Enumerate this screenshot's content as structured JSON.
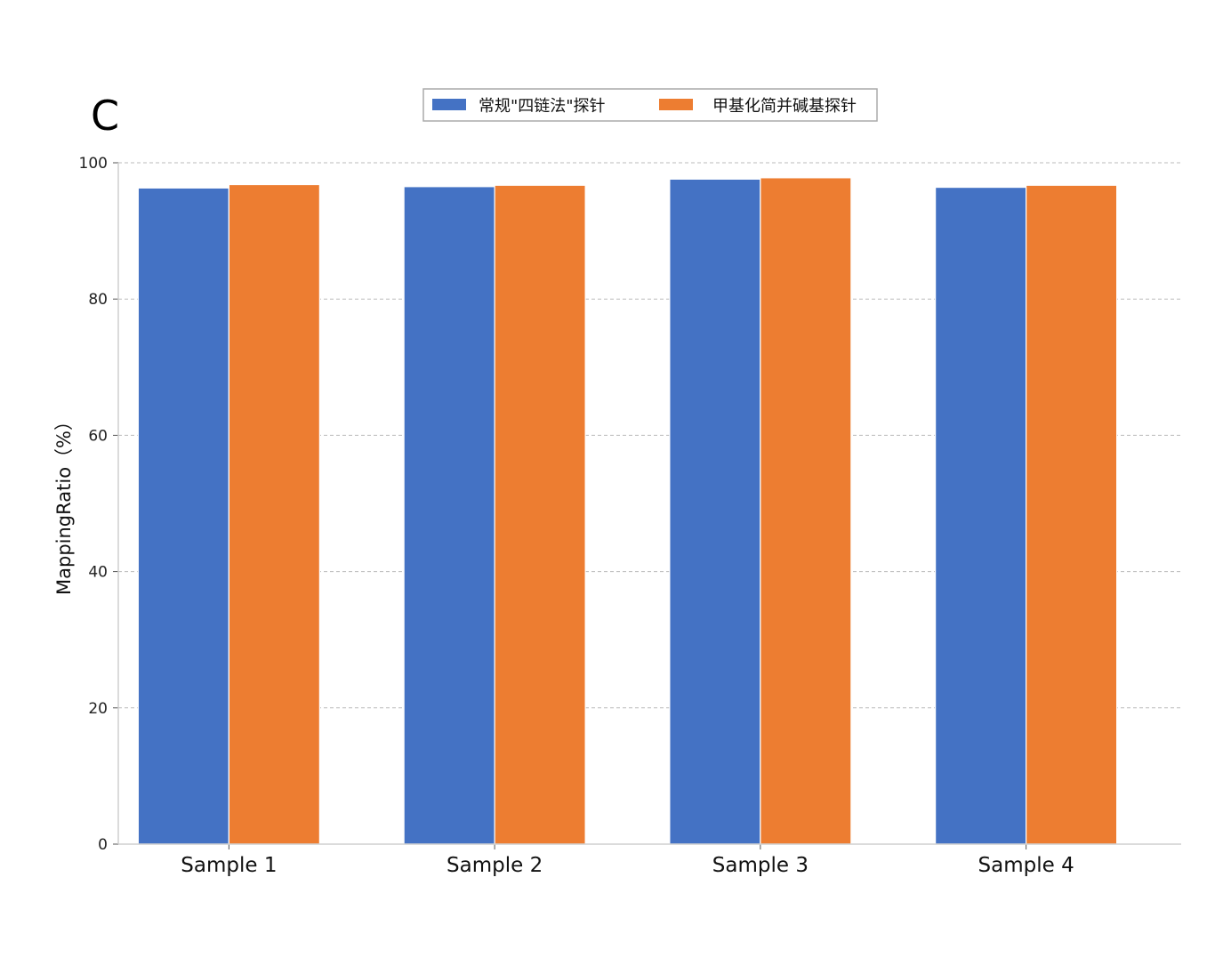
{
  "panel_label": "C",
  "chart_data": {
    "type": "bar",
    "categories": [
      "Sample 1",
      "Sample 2",
      "Sample 3",
      "Sample 4"
    ],
    "series": [
      {
        "name": "常规\"四链法\"探针",
        "values": [
          96.3,
          96.5,
          97.6,
          96.4
        ],
        "color": "#4472C4"
      },
      {
        "name": "甲基化简并碱基探针",
        "values": [
          96.8,
          96.7,
          97.8,
          96.7
        ],
        "color": "#ED7D31"
      }
    ],
    "ylabel": "MappingRatio（%）",
    "ylim": [
      0,
      100
    ],
    "yticks": [
      0,
      20,
      40,
      60,
      80,
      100
    ],
    "grid": true,
    "legend": "top-center"
  }
}
